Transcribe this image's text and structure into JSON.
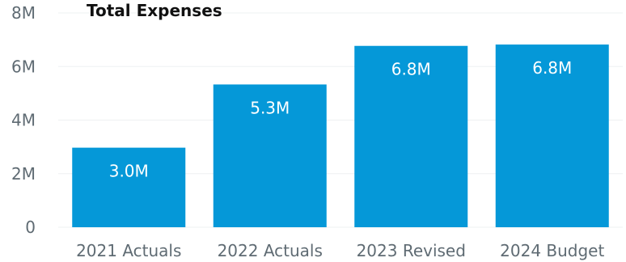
{
  "chart_data": {
    "type": "bar",
    "title": "Total Expenses",
    "categories": [
      "2021 Actuals",
      "2022 Actuals",
      "2023 Revised",
      "2024 Budget"
    ],
    "values": [
      2.97,
      5.33,
      6.77,
      6.82
    ],
    "data_labels": [
      "3.0M",
      "5.3M",
      "6.8M",
      "6.8M"
    ],
    "ylim": [
      0,
      8
    ],
    "yticks": [
      0,
      2,
      4,
      6,
      8
    ],
    "ytick_labels": [
      "0",
      "2M",
      "4M",
      "6M",
      "8M"
    ],
    "xlabel": "",
    "ylabel": "",
    "grid": true,
    "bar_color": "#0598d8"
  }
}
